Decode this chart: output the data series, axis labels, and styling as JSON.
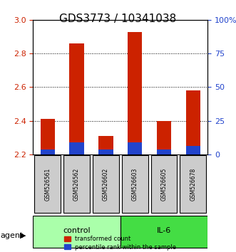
{
  "title": "GDS3773 / 10341038",
  "samples": [
    "GSM526561",
    "GSM526562",
    "GSM526602",
    "GSM526603",
    "GSM526605",
    "GSM526678"
  ],
  "red_values": [
    2.41,
    2.86,
    2.31,
    2.93,
    2.4,
    2.58
  ],
  "blue_values": [
    2.23,
    2.27,
    2.23,
    2.27,
    2.23,
    2.25
  ],
  "ymin": 2.2,
  "ymax": 3.0,
  "yticks": [
    2.2,
    2.4,
    2.6,
    2.8,
    3.0
  ],
  "right_yticks": [
    0,
    25,
    50,
    75,
    100
  ],
  "right_ylabels": [
    "0",
    "25",
    "50",
    "75",
    "100%"
  ],
  "groups": [
    {
      "label": "control",
      "start": 0,
      "end": 3,
      "color": "#aaffaa"
    },
    {
      "label": "IL-6",
      "start": 3,
      "end": 6,
      "color": "#44dd44"
    }
  ],
  "bar_color_red": "#cc2200",
  "bar_color_blue": "#2244cc",
  "bar_width": 0.5,
  "agent_label": "agent",
  "legend_red": "transformed count",
  "legend_blue": "percentile rank within the sample",
  "title_fontsize": 11,
  "axis_bg": "#f0f0f0",
  "grid_color": "black",
  "left_tick_color": "#cc2200",
  "right_tick_color": "#2244cc",
  "sample_box_color": "#cccccc"
}
